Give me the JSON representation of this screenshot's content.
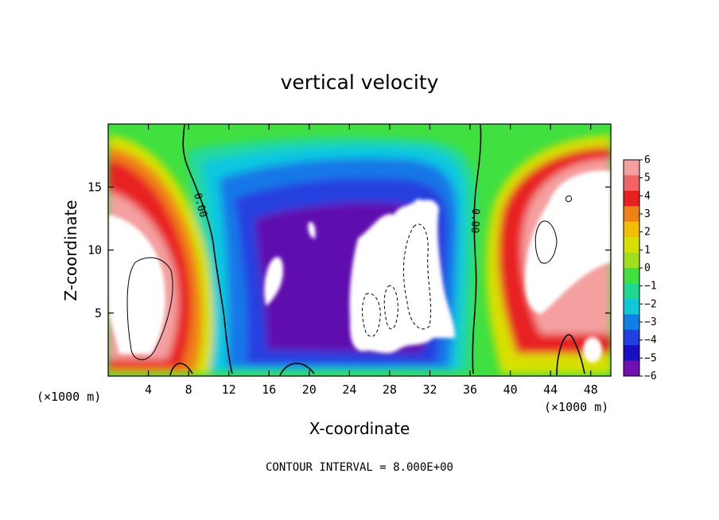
{
  "chart_data": {
    "type": "heatmap",
    "title": "vertical velocity",
    "xlabel": "X-coordinate",
    "ylabel": "Z-coordinate",
    "x_unit_label_left": "(×1000 m)",
    "x_unit_label_right": "(×1000 m)",
    "xlim": [
      0,
      50
    ],
    "ylim": [
      0,
      20
    ],
    "x_ticks": [
      4,
      8,
      12,
      16,
      20,
      24,
      28,
      32,
      36,
      40,
      44,
      48
    ],
    "y_ticks": [
      5,
      10,
      15
    ],
    "contour_label_1": "0.00",
    "contour_label_2": "0.00",
    "footer_note": "CONTOUR INTERVAL = 8.000E+00",
    "colorbar": {
      "min": -6,
      "max": 6,
      "labels": [
        "6",
        "5",
        "4",
        "3",
        "2",
        "1",
        "0",
        "−1",
        "−2",
        "−3",
        "−4",
        "−5",
        "−6"
      ],
      "colors": [
        "#f4a0a0",
        "#f06464",
        "#e82020",
        "#f08018",
        "#f0c000",
        "#d8e000",
        "#a0e020",
        "#40e040",
        "#20d890",
        "#10c8d8",
        "#1080e8",
        "#2040e0",
        "#1810c0",
        "#7010b0"
      ]
    },
    "regions_w": [
      {
        "x": 2.4,
        "z": 13.0,
        "w": 6,
        "kind": "updraft"
      },
      {
        "x": 5.0,
        "z": 7.5,
        "w": 10,
        "kind": "updraft"
      },
      {
        "x": 20.0,
        "z": 9.0,
        "w": -5,
        "kind": "downdraft"
      },
      {
        "x": 15.5,
        "z": 9.0,
        "w": -6,
        "kind": "downdraft"
      },
      {
        "x": 29.0,
        "z": 7.5,
        "w": -9,
        "kind": "downdraft_core"
      },
      {
        "x": 44.5,
        "z": 10.0,
        "w": 10,
        "kind": "updraft"
      },
      {
        "x": 48.5,
        "z": 13.0,
        "w": 6,
        "kind": "updraft"
      }
    ]
  }
}
